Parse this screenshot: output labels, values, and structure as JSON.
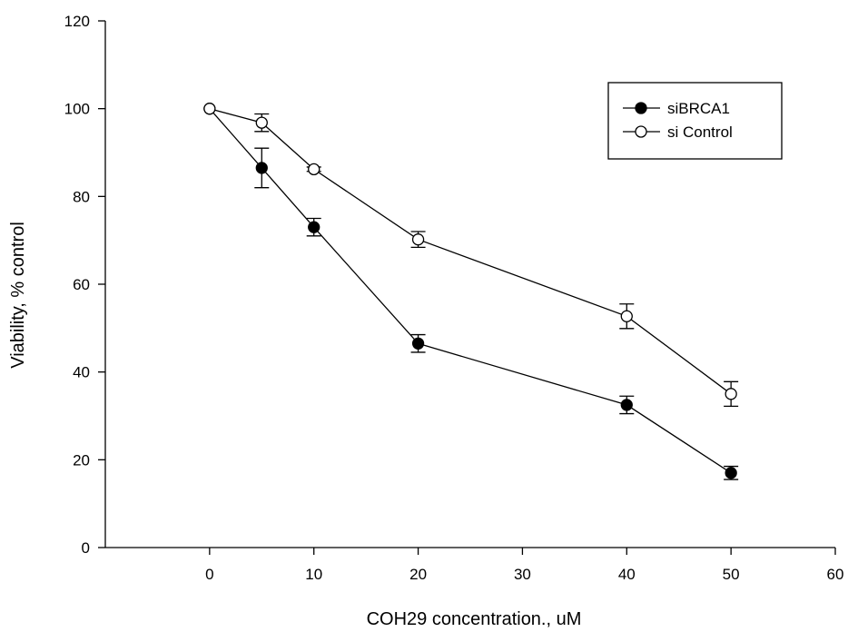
{
  "chart_data": {
    "type": "line",
    "xlabel": "COH29 concentration., uM",
    "ylabel": "Viability, % control",
    "xlim": [
      -10,
      60
    ],
    "ylim": [
      0,
      120
    ],
    "xticks": [
      0,
      10,
      20,
      30,
      40,
      50,
      60
    ],
    "yticks": [
      0,
      20,
      40,
      60,
      80,
      100,
      120
    ],
    "grid": false,
    "legend_position": "top-right",
    "x": [
      0,
      5,
      10,
      20,
      40,
      50
    ],
    "series": [
      {
        "name": "siBRCA1",
        "marker": "filled-circle",
        "values": [
          100,
          86.5,
          73,
          46.5,
          32.5,
          17
        ],
        "errors": [
          0,
          4.5,
          2,
          2,
          2,
          1.5
        ]
      },
      {
        "name": "si Control",
        "marker": "open-circle",
        "values": [
          100,
          96.8,
          86.2,
          70.2,
          52.7,
          35
        ],
        "errors": [
          0,
          2,
          0.5,
          1.8,
          2.8,
          2.8
        ]
      }
    ],
    "colors": {
      "line": "#000000",
      "open_marker_fill": "#ffffff"
    }
  }
}
